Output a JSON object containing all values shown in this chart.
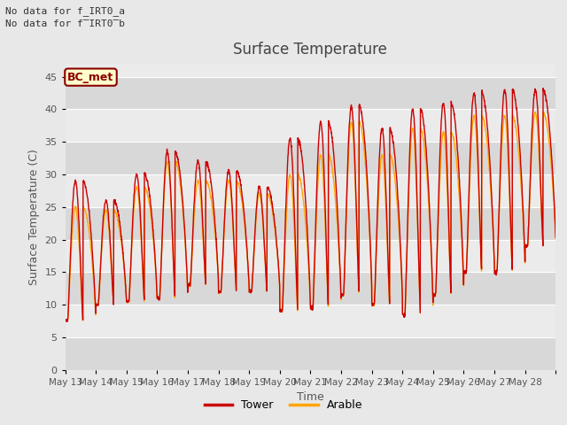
{
  "title": "Surface Temperature",
  "xlabel": "Time",
  "ylabel": "Surface Temperature (C)",
  "ylim": [
    0,
    47
  ],
  "yticks": [
    0,
    5,
    10,
    15,
    20,
    25,
    30,
    35,
    40,
    45
  ],
  "fig_bg": "#e8e8e8",
  "plot_bg_light": "#ebebeb",
  "plot_bg_dark": "#d8d8d8",
  "note1": "No data for f_IRT0_a",
  "note2": "No data for f̅IRT0̅b",
  "legend_label1": "Tower",
  "legend_label2": "Arable",
  "line_color1": "#cc0000",
  "line_color2": "#ffa500",
  "bc_met_label": "BC_met",
  "bc_met_color": "#8b0000",
  "bc_met_bg": "#ffffcc",
  "xtick_labels": [
    "May 13",
    "May 14",
    "May 15",
    "May 16",
    "May 17",
    "May 18",
    "May 19",
    "May 20",
    "May 21",
    "May 22",
    "May 23",
    "May 24",
    "May 25",
    "May 26",
    "May 27",
    "May 28"
  ],
  "num_days": 16
}
